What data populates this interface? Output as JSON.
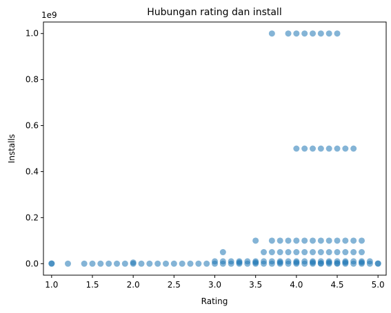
{
  "chart_data": {
    "type": "scatter",
    "title": "Hubungan rating dan install",
    "xlabel": "Rating",
    "ylabel": "Installs",
    "y_offset_label": "1e9",
    "xlim": [
      0.9,
      5.1
    ],
    "ylim": [
      -0.05,
      1.05
    ],
    "xticks": [
      "1.0",
      "1.5",
      "2.0",
      "2.5",
      "3.0",
      "3.5",
      "4.0",
      "4.5",
      "5.0"
    ],
    "xtick_values": [
      1.0,
      1.5,
      2.0,
      2.5,
      3.0,
      3.5,
      4.0,
      4.5,
      5.0
    ],
    "yticks": [
      "0.0",
      "0.2",
      "0.4",
      "0.6",
      "0.8",
      "1.0"
    ],
    "ytick_values": [
      0.0,
      0.2,
      0.4,
      0.6,
      0.8,
      1.0
    ],
    "grid": false,
    "color": "#1f77b4",
    "y_units": "billions of installs (x1e9)",
    "points": [
      [
        3.7,
        1.0
      ],
      [
        3.9,
        1.0
      ],
      [
        4.0,
        1.0
      ],
      [
        4.1,
        1.0
      ],
      [
        4.2,
        1.0
      ],
      [
        4.3,
        1.0
      ],
      [
        4.4,
        1.0
      ],
      [
        4.5,
        1.0
      ],
      [
        4.0,
        0.5
      ],
      [
        4.1,
        0.5
      ],
      [
        4.2,
        0.5
      ],
      [
        4.3,
        0.5
      ],
      [
        4.4,
        0.5
      ],
      [
        4.5,
        0.5
      ],
      [
        4.6,
        0.5
      ],
      [
        4.7,
        0.5
      ],
      [
        3.5,
        0.1
      ],
      [
        3.7,
        0.1
      ],
      [
        3.8,
        0.1
      ],
      [
        3.9,
        0.1
      ],
      [
        4.0,
        0.1
      ],
      [
        4.1,
        0.1
      ],
      [
        4.2,
        0.1
      ],
      [
        4.3,
        0.1
      ],
      [
        4.4,
        0.1
      ],
      [
        4.5,
        0.1
      ],
      [
        4.6,
        0.1
      ],
      [
        4.7,
        0.1
      ],
      [
        4.8,
        0.1
      ],
      [
        3.1,
        0.05
      ],
      [
        3.6,
        0.05
      ],
      [
        3.7,
        0.05
      ],
      [
        3.8,
        0.05
      ],
      [
        3.9,
        0.05
      ],
      [
        4.0,
        0.05
      ],
      [
        4.1,
        0.05
      ],
      [
        4.2,
        0.05
      ],
      [
        4.3,
        0.05
      ],
      [
        4.4,
        0.05
      ],
      [
        4.5,
        0.05
      ],
      [
        4.6,
        0.05
      ],
      [
        4.7,
        0.05
      ],
      [
        4.8,
        0.05
      ],
      [
        3.0,
        0.01
      ],
      [
        3.1,
        0.01
      ],
      [
        3.2,
        0.01
      ],
      [
        3.3,
        0.01
      ],
      [
        3.4,
        0.01
      ],
      [
        3.5,
        0.01
      ],
      [
        3.6,
        0.01
      ],
      [
        3.7,
        0.01
      ],
      [
        3.8,
        0.01
      ],
      [
        3.9,
        0.01
      ],
      [
        4.0,
        0.01
      ],
      [
        4.1,
        0.01
      ],
      [
        4.2,
        0.01
      ],
      [
        4.3,
        0.01
      ],
      [
        4.4,
        0.01
      ],
      [
        4.5,
        0.01
      ],
      [
        4.6,
        0.01
      ],
      [
        4.7,
        0.01
      ],
      [
        4.8,
        0.01
      ],
      [
        4.9,
        0.01
      ],
      [
        2.0,
        0.005
      ],
      [
        3.3,
        0.005
      ],
      [
        3.5,
        0.005
      ],
      [
        3.8,
        0.005
      ],
      [
        4.0,
        0.005
      ],
      [
        4.2,
        0.005
      ],
      [
        4.4,
        0.005
      ],
      [
        4.6,
        0.005
      ],
      [
        4.8,
        0.005
      ],
      [
        1.0,
        0.0
      ],
      [
        1.2,
        0.0
      ],
      [
        1.4,
        0.0
      ],
      [
        1.5,
        0.0
      ],
      [
        1.6,
        0.0
      ],
      [
        1.7,
        0.0
      ],
      [
        1.8,
        0.0
      ],
      [
        1.9,
        0.0
      ],
      [
        2.0,
        0.0
      ],
      [
        2.1,
        0.0
      ],
      [
        2.2,
        0.0
      ],
      [
        2.3,
        0.0
      ],
      [
        2.4,
        0.0
      ],
      [
        2.5,
        0.0
      ],
      [
        2.6,
        0.0
      ],
      [
        2.7,
        0.0
      ],
      [
        2.8,
        0.0
      ],
      [
        2.9,
        0.0
      ],
      [
        3.0,
        0.0
      ],
      [
        3.1,
        0.0
      ],
      [
        3.2,
        0.0
      ],
      [
        3.3,
        0.0
      ],
      [
        3.4,
        0.0
      ],
      [
        3.5,
        0.0
      ],
      [
        3.6,
        0.0
      ],
      [
        3.7,
        0.0
      ],
      [
        3.8,
        0.0
      ],
      [
        3.9,
        0.0
      ],
      [
        4.0,
        0.0
      ],
      [
        4.1,
        0.0
      ],
      [
        4.2,
        0.0
      ],
      [
        4.3,
        0.0
      ],
      [
        4.4,
        0.0
      ],
      [
        4.5,
        0.0
      ],
      [
        4.6,
        0.0
      ],
      [
        4.7,
        0.0
      ],
      [
        4.8,
        0.0
      ],
      [
        4.9,
        0.0
      ],
      [
        5.0,
        0.0
      ],
      [
        1.0,
        0.001
      ],
      [
        5.0,
        0.001
      ],
      [
        4.5,
        0.002
      ],
      [
        4.3,
        0.002
      ]
    ]
  }
}
